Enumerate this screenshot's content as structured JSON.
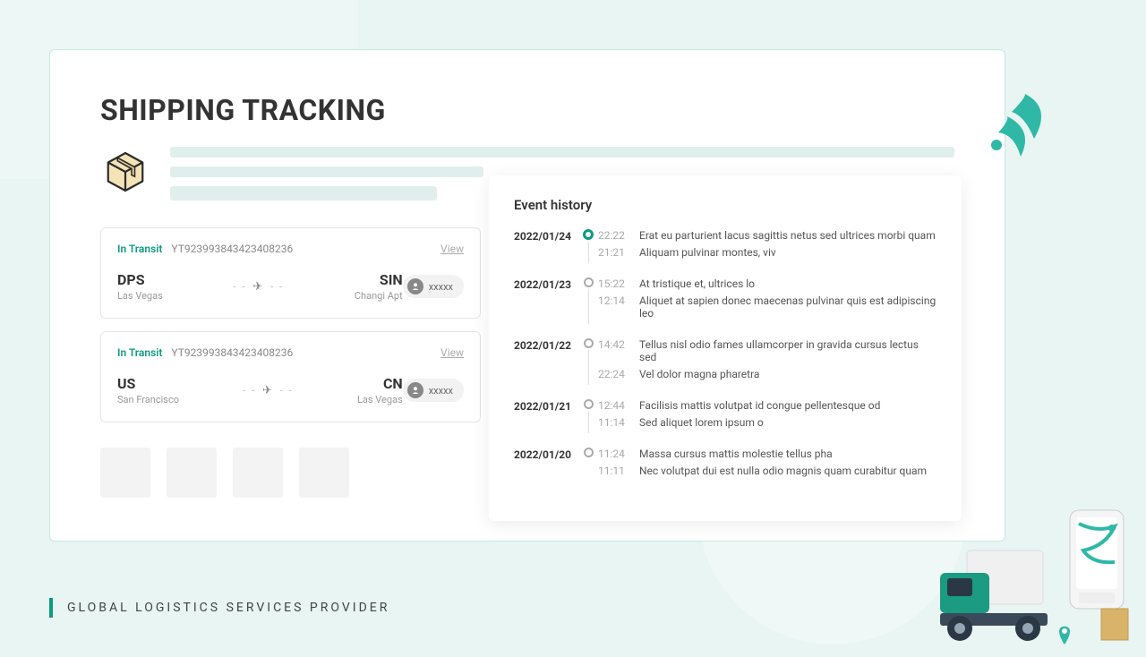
{
  "colors": {
    "page_bg": "#e8f5f3",
    "card_bg": "#ffffff",
    "card_border": "#c8e8e3",
    "accent": "#0d9b7f",
    "text_primary": "#333333",
    "text_muted": "#999999",
    "bar_fill": "#e0efec",
    "thumb_fill": "#f3f3f3"
  },
  "page": {
    "title": "SHIPPING TRACKING"
  },
  "shipments": [
    {
      "status": "In Transit",
      "tracking": "YT923993843423408236",
      "view_label": "View",
      "from_code": "DPS",
      "from_city": "Las Vegas",
      "to_code": "SIN",
      "to_city": "Changi Apt",
      "user_label": "xxxxx"
    },
    {
      "status": "In Transit",
      "tracking": "YT923993843423408236",
      "view_label": "View",
      "from_code": "US",
      "from_city": "San Francisco",
      "to_code": "CN",
      "to_city": "Las Vegas",
      "user_label": "xxxxx"
    }
  ],
  "events": {
    "title": "Event history",
    "days": [
      {
        "date": "2022/01/24",
        "active": true,
        "items": [
          {
            "time": "22:22",
            "text": "Erat eu parturient lacus sagittis netus sed ultrices morbi quam"
          },
          {
            "time": "21:21",
            "text": "Aliquam pulvinar montes, viv"
          }
        ]
      },
      {
        "date": "2022/01/23",
        "active": false,
        "items": [
          {
            "time": "15:22",
            "text": "At tristique et, ultrices lo"
          },
          {
            "time": "12:14",
            "text": "Aliquet at sapien donec maecenas pulvinar quis est adipiscing leo"
          }
        ]
      },
      {
        "date": "2022/01/22",
        "active": false,
        "items": [
          {
            "time": "14:42",
            "text": "Tellus nisl odio fames ullamcorper in gravida cursus lectus sed"
          },
          {
            "time": "22:24",
            "text": "Vel dolor magna pharetra"
          }
        ]
      },
      {
        "date": "2022/01/21",
        "active": false,
        "items": [
          {
            "time": "12:44",
            "text": "Facilisis mattis volutpat id congue pellentesque od"
          },
          {
            "time": "11:14",
            "text": "Sed aliquet lorem ipsum o"
          }
        ]
      },
      {
        "date": "2022/01/20",
        "active": false,
        "items": [
          {
            "time": "11:24",
            "text": "Massa cursus mattis molestie tellus pha"
          },
          {
            "time": "11:11",
            "text": "Nec volutpat dui est nulla odio magnis quam curabitur quam"
          }
        ]
      }
    ]
  },
  "footer": "GLOBAL  LOGISTICS  SERVICES  PROVIDER"
}
